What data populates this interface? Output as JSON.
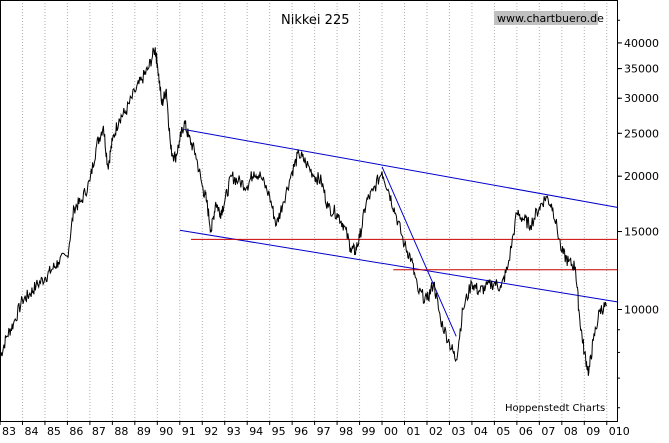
{
  "chart_data": {
    "type": "line",
    "title": "Nikkei 225",
    "watermark": "www.chartbuero.de",
    "credit": "Hoppenstedt Charts",
    "y_scale": "log",
    "ylim": [
      5600,
      50000
    ],
    "y_ticks": [
      10000,
      15000,
      20000,
      25000,
      30000,
      35000,
      40000
    ],
    "y_tick_labels": [
      "10000",
      "15000",
      "20000",
      "25000",
      "30000",
      "35000",
      "40000"
    ],
    "xlim": [
      1983.0,
      2010.5
    ],
    "x_ticks": [
      1983,
      1984,
      1985,
      1986,
      1987,
      1988,
      1989,
      1990,
      1991,
      1992,
      1993,
      1994,
      1995,
      1996,
      1997,
      1998,
      1999,
      2000,
      2001,
      2002,
      2003,
      2004,
      2005,
      2006,
      2007,
      2008,
      2009,
      2010
    ],
    "x_tick_labels": [
      "83",
      "84",
      "85",
      "86",
      "87",
      "88",
      "89",
      "90",
      "91",
      "92",
      "93",
      "94",
      "95",
      "96",
      "97",
      "98",
      "99",
      "00",
      "01",
      "02",
      "03",
      "04",
      "05",
      "06",
      "07",
      "08",
      "09",
      "010"
    ],
    "grid": "vertical",
    "series": [
      {
        "name": "",
        "color": "#000000",
        "x": [
          1983.0,
          1983.3,
          1983.6,
          1984.0,
          1984.3,
          1984.6,
          1985.0,
          1985.3,
          1985.6,
          1986.0,
          1986.3,
          1986.6,
          1987.0,
          1987.3,
          1987.6,
          1987.8,
          1988.0,
          1988.3,
          1988.6,
          1989.0,
          1989.3,
          1989.6,
          1989.9,
          1990.0,
          1990.2,
          1990.4,
          1990.6,
          1990.8,
          1991.0,
          1991.2,
          1991.4,
          1991.7,
          1992.0,
          1992.2,
          1992.4,
          1992.6,
          1992.8,
          1993.0,
          1993.3,
          1993.6,
          1994.0,
          1994.3,
          1994.6,
          1995.0,
          1995.3,
          1995.6,
          1996.0,
          1996.3,
          1996.6,
          1997.0,
          1997.3,
          1997.6,
          1998.0,
          1998.3,
          1998.6,
          1998.8,
          1999.0,
          1999.3,
          1999.6,
          2000.0,
          2000.3,
          2000.6,
          2001.0,
          2001.3,
          2001.6,
          2002.0,
          2002.3,
          2002.6,
          2003.0,
          2003.3,
          2003.6,
          2004.0,
          2004.3,
          2004.6,
          2005.0,
          2005.3,
          2005.6,
          2006.0,
          2006.3,
          2006.6,
          2007.0,
          2007.3,
          2007.6,
          2008.0,
          2008.3,
          2008.6,
          2008.8,
          2009.0,
          2009.2,
          2009.4,
          2009.7,
          2010.0
        ],
        "values": [
          7800,
          8700,
          9300,
          10500,
          10800,
          11300,
          11800,
          12300,
          12800,
          13200,
          17000,
          17500,
          19500,
          23500,
          26000,
          21000,
          24000,
          27000,
          28000,
          31000,
          33000,
          35000,
          38900,
          36000,
          29000,
          31500,
          23000,
          22000,
          24000,
          26500,
          24500,
          22500,
          19000,
          17500,
          15000,
          17500,
          16500,
          17500,
          20000,
          19500,
          19000,
          20500,
          20000,
          18000,
          15500,
          17500,
          20500,
          22500,
          21500,
          20000,
          19500,
          17000,
          16500,
          15500,
          13800,
          13500,
          14500,
          17500,
          18500,
          20500,
          18500,
          16500,
          14000,
          13000,
          11000,
          10500,
          11500,
          9500,
          8400,
          7700,
          10000,
          11500,
          11000,
          11200,
          11500,
          11200,
          12500,
          16500,
          16000,
          15500,
          17000,
          18000,
          17000,
          13500,
          12800,
          12500,
          9500,
          8000,
          7200,
          8500,
          10000,
          10200
        ]
      }
    ],
    "trendlines": [
      {
        "color": "#0000cc",
        "from": [
          1991.2,
          25500
        ],
        "to": [
          2010.5,
          17000
        ]
      },
      {
        "color": "#0000cc",
        "from": [
          1991.0,
          15100
        ],
        "to": [
          2010.5,
          10400
        ]
      },
      {
        "color": "#0000cc",
        "from": [
          2000.0,
          21000
        ],
        "to": [
          2003.3,
          8700
        ]
      }
    ],
    "hlines": [
      {
        "color": "#cc0000",
        "y": 14400,
        "x_from": 1991.5,
        "x_to": 2010.5
      },
      {
        "color": "#cc0000",
        "y": 12300,
        "x_from": 2000.5,
        "x_to": 2010.5
      }
    ]
  }
}
